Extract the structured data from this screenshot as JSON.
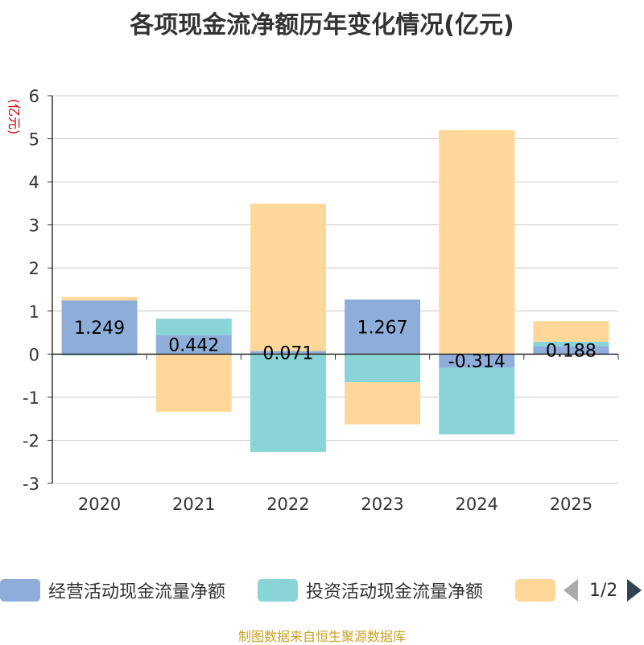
{
  "title": "各项现金流净额历年变化情况(亿元)",
  "source": "制图数据来自恒生聚源数据库",
  "legend": {
    "items": [
      {
        "label": "经营活动现金流量净额",
        "color": "#8eaed9"
      },
      {
        "label": "投资活动现金流量净额",
        "color": "#88d4d6"
      },
      {
        "label": "",
        "color": "#ffd899"
      }
    ],
    "page": "1/2"
  },
  "chart_data": {
    "type": "bar",
    "stacked": true,
    "title": "各项现金流净额历年变化情况(亿元)",
    "ylabel": "(亿元)",
    "ylim": [
      -3,
      6
    ],
    "yticks": [
      -3,
      -2,
      -1,
      0,
      1,
      2,
      3,
      4,
      5,
      6
    ],
    "categories": [
      "2020",
      "2021",
      "2022",
      "2023",
      "2024",
      "2025"
    ],
    "series": [
      {
        "name": "经营活动现金流量净额",
        "color": "#8eaed9",
        "values": [
          1.249,
          0.442,
          0.071,
          1.267,
          -0.314,
          0.188
        ],
        "labels": [
          "1.249",
          "0.442",
          "0.071",
          "1.267",
          "-0.314",
          "0.188"
        ]
      },
      {
        "name": "投资活动现金流量净额",
        "color": "#88d4d6",
        "values": [
          -0.03,
          0.38,
          -2.27,
          -0.65,
          -1.55,
          0.1
        ]
      },
      {
        "name": "",
        "color": "#ffd899",
        "values": [
          0.08,
          -1.34,
          3.42,
          -0.98,
          5.2,
          0.48
        ]
      }
    ]
  }
}
